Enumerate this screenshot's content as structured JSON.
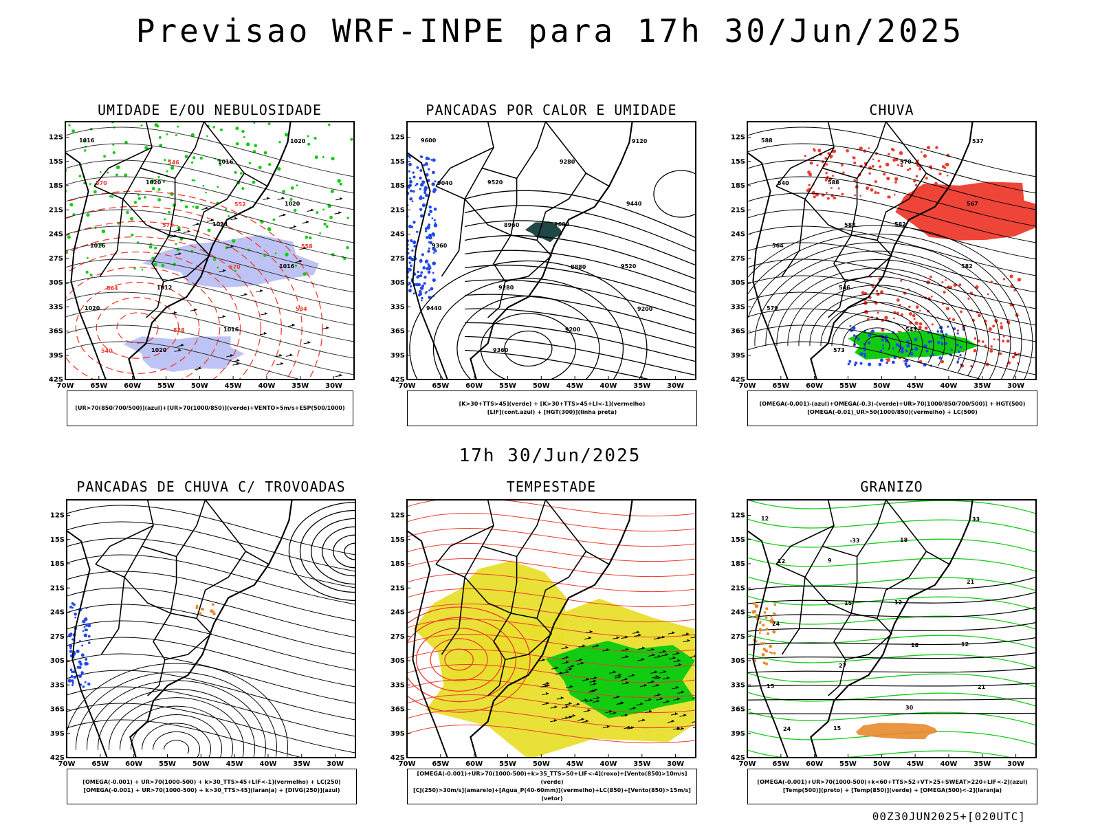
{
  "title": "Previsao WRF-INPE  para 17h 30/Jun/2025",
  "subtitle": "17h 30/Jun/2025",
  "footer": "00Z30JUN2025+[020UTC]",
  "axes": {
    "y_ticks": [
      "12S",
      "15S",
      "18S",
      "21S",
      "24S",
      "27S",
      "30S",
      "33S",
      "36S",
      "39S",
      "42S"
    ],
    "x_ticks": [
      "70W",
      "65W",
      "60W",
      "55W",
      "50W",
      "45W",
      "40W",
      "35W",
      "30W"
    ]
  },
  "panels": [
    {
      "id": "umidade",
      "title": "UMIDADE E/OU NEBULOSIDADE",
      "legend": [
        "[UR>70(850/700/500)](azul)+[UR>70(1000/850)](verde)+VENTO>5m/s+ESP(500/1000)"
      ],
      "labels": [
        "1016",
        "1020",
        "1024",
        "1016",
        "1020",
        "1020",
        "1016",
        "1020",
        "1016",
        "1012",
        "1016",
        "1020",
        "570",
        "570",
        "570",
        "534",
        "540",
        "546",
        "552",
        "558",
        "564",
        "528"
      ]
    },
    {
      "id": "pancadas_calor",
      "title": "PANCADAS POR CALOR E UMIDADE",
      "legend": [
        "[K>30+TTS>45](verde) + [K>30+TTS>45+LI<-1](vermelho)",
        "[LIF](cont.azul) + [HGT(300)](linha preta)"
      ],
      "labels": [
        "9600",
        "9520",
        "9600",
        "9520",
        "9440",
        "9360",
        "9280",
        "9440",
        "9360",
        "9280",
        "9200",
        "9120",
        "9040",
        "8960",
        "8880",
        "9200"
      ]
    },
    {
      "id": "chuva",
      "title": "CHUVA",
      "legend": [
        "[OMEGA(-0.001)-(azul)+OMEGA(-0.3)-(verde)+UR>70(1000/850/700/500)] + HGT(500)",
        "[OMEGA(-0.01)_UR>50(1000/850)(vermelho) + LC(500)"
      ],
      "labels": [
        "588",
        "588",
        "582",
        "582",
        "579",
        "573",
        "570",
        "567",
        "564",
        "546",
        "543",
        "537",
        "540",
        "588"
      ]
    },
    {
      "id": "pancadas_trovoadas",
      "title": "PANCADAS DE CHUVA C/ TROVOADAS",
      "legend": [
        "[OMEGA(-0.001) + UR>70(1000-500) + k>30_TTS>45+LIF<-1](vermelho) + LC(250)",
        "[OMEGA(-0.001) + UR>70(1000-500) + k>30_TTS>45](laranja) + [DIVG(250)](azul)"
      ],
      "labels": []
    },
    {
      "id": "tempestade",
      "title": "TEMPESTADE",
      "legend": [
        "[OMEGA(-0.001)+UR>70(1000-500)+k>35_TTS>50+LIF<-4](roxo)+[Vento(850)>10m/s](verde)",
        "[CJ(250)>30m/s](amarelo)+[Agua_P(40-60mm)](vermelho)+LC(850)+[Vento(850)>15m/s](vetor)"
      ],
      "labels": []
    },
    {
      "id": "granizo",
      "title": "GRANIZO",
      "legend": [
        "[OMEGA(-0.001)+UR>70(1000-500)+k<60+TTS>52+VT>25+SWEAT>220+LIF<-2](azul)",
        "[Temp(500)](preto) + [Temp(850)](verde) + [OMEGA(500)<-2](laranja)"
      ],
      "labels": [
        "12",
        "9",
        "12",
        "12",
        "15",
        "15",
        "18",
        "21",
        "24",
        "27",
        "30",
        "33",
        "12",
        "15",
        "18",
        "21",
        "24",
        "-33"
      ]
    }
  ],
  "colors": {
    "blue_humidity": "#aeb4f2",
    "green": "#11cc11",
    "red": "#ee3b2e",
    "yellow": "#e8df2c",
    "darkteal": "#1f4746",
    "blue_dots": "#2349e8",
    "orange": "#e88a2c"
  }
}
